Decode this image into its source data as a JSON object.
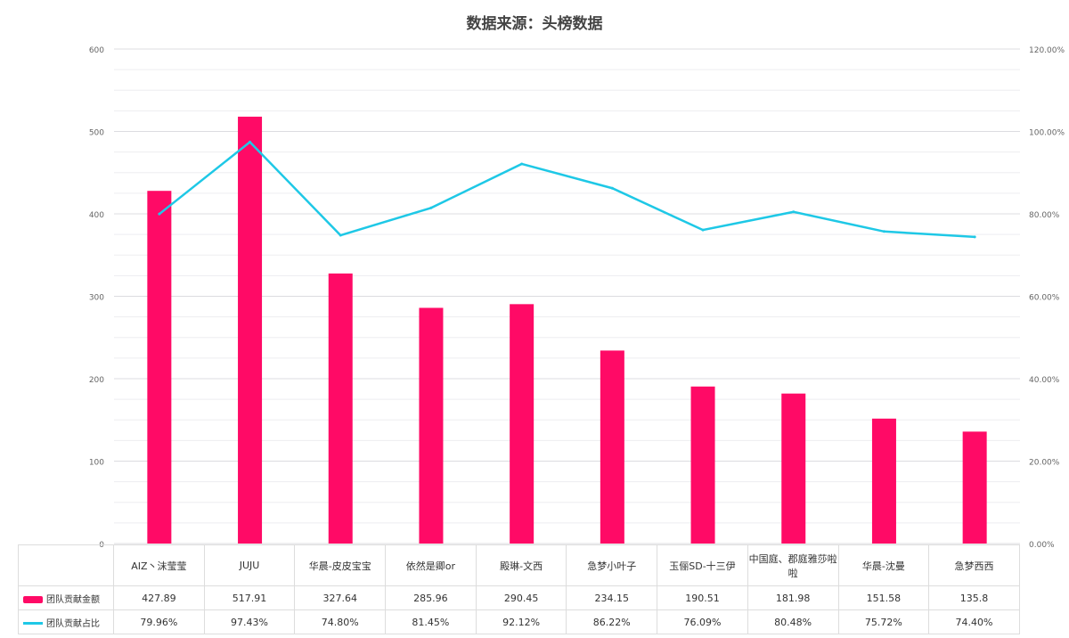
{
  "chart_data": {
    "type": "bar+line",
    "title": "数据来源：头榜数据",
    "categories": [
      "AIZ丶沫莹莹",
      "JUJU",
      "华晨-皮皮宝宝",
      "依然是卿or",
      "殿琳-文西",
      "急梦小叶子",
      "玉俪SD-十三伊",
      "中国庭、郡庭雅莎啦啦",
      "华晨-沈曼",
      "急梦西西"
    ],
    "series": [
      {
        "name": "团队贡献金额",
        "type": "bar",
        "axis": "left",
        "color": "#ff0a66",
        "values": [
          427.89,
          517.91,
          327.64,
          285.96,
          290.45,
          234.15,
          190.51,
          181.98,
          151.58,
          135.8
        ],
        "labels": [
          "427.89",
          "517.91",
          "327.64",
          "285.96",
          "290.45",
          "234.15",
          "190.51",
          "181.98",
          "151.58",
          "135.8"
        ]
      },
      {
        "name": "团队贡献占比",
        "type": "line",
        "axis": "right",
        "color": "#1ec8e6",
        "values": [
          79.96,
          97.43,
          74.8,
          81.45,
          92.12,
          86.22,
          76.09,
          80.48,
          75.72,
          74.4
        ],
        "labels": [
          "79.96%",
          "97.43%",
          "74.80%",
          "81.45%",
          "92.12%",
          "86.22%",
          "76.09%",
          "80.48%",
          "75.72%",
          "74.40%"
        ]
      }
    ],
    "ylim": [
      0,
      600
    ],
    "y_ticks": [
      "0",
      "100",
      "200",
      "300",
      "400",
      "500",
      "600"
    ],
    "y2lim": [
      0,
      120
    ],
    "y2_ticks": [
      "0.00%",
      "20.00%",
      "40.00%",
      "60.00%",
      "80.00%",
      "100.00%",
      "120.00%"
    ],
    "grid": true,
    "legend": "data-table"
  }
}
